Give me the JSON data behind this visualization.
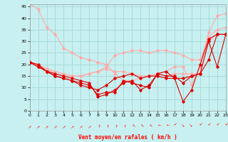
{
  "bg_color": "#c8f0f0",
  "grid_color": "#a8dada",
  "line_color_light": "#ffaaaa",
  "line_color_dark": "#dd0000",
  "xlabel": "Vent moyen/en rafales ( km/h )",
  "xlim": [
    0,
    23
  ],
  "ylim": [
    0,
    46
  ],
  "yticks": [
    0,
    5,
    10,
    15,
    20,
    25,
    30,
    35,
    40,
    45
  ],
  "xticks": [
    0,
    1,
    2,
    3,
    4,
    5,
    6,
    7,
    8,
    9,
    10,
    11,
    12,
    13,
    14,
    15,
    16,
    17,
    18,
    19,
    20,
    21,
    22,
    23
  ],
  "series_light_1": [
    46,
    44,
    36,
    33,
    27,
    25,
    23,
    22,
    21,
    20,
    16,
    13,
    13,
    14,
    15,
    16,
    17,
    19,
    19,
    11,
    19,
    34,
    41,
    42
  ],
  "series_light_2": [
    21,
    20,
    18,
    16,
    15,
    15,
    15,
    16,
    17,
    18,
    17,
    17,
    16,
    15,
    15,
    16,
    15,
    16,
    16,
    16,
    16,
    30,
    33,
    33
  ],
  "series_light_3": [
    21,
    19,
    18,
    17,
    16,
    15,
    15,
    16,
    17,
    19,
    24,
    25,
    26,
    26,
    25,
    26,
    26,
    25,
    24,
    22,
    22,
    32,
    35,
    36
  ],
  "series_dark_1": [
    21,
    19,
    17,
    15,
    14,
    13,
    12,
    11,
    7,
    8,
    8,
    13,
    12,
    11,
    10,
    16,
    17,
    14,
    4,
    9,
    20,
    31,
    33,
    33
  ],
  "series_dark_2": [
    21,
    19,
    17,
    16,
    15,
    14,
    13,
    12,
    6,
    7,
    9,
    12,
    13,
    9,
    11,
    16,
    15,
    15,
    12,
    15,
    16,
    30,
    19,
    33
  ],
  "series_dark_3": [
    21,
    20,
    17,
    15,
    14,
    13,
    11,
    10,
    9,
    11,
    14,
    15,
    16,
    14,
    15,
    15,
    14,
    14,
    14,
    15,
    16,
    22,
    33,
    33
  ],
  "wind_dirs": [
    225,
    225,
    225,
    225,
    225,
    225,
    225,
    225,
    180,
    180,
    180,
    180,
    135,
    135,
    135,
    90,
    90,
    45,
    315,
    315,
    45,
    45,
    45,
    45
  ]
}
